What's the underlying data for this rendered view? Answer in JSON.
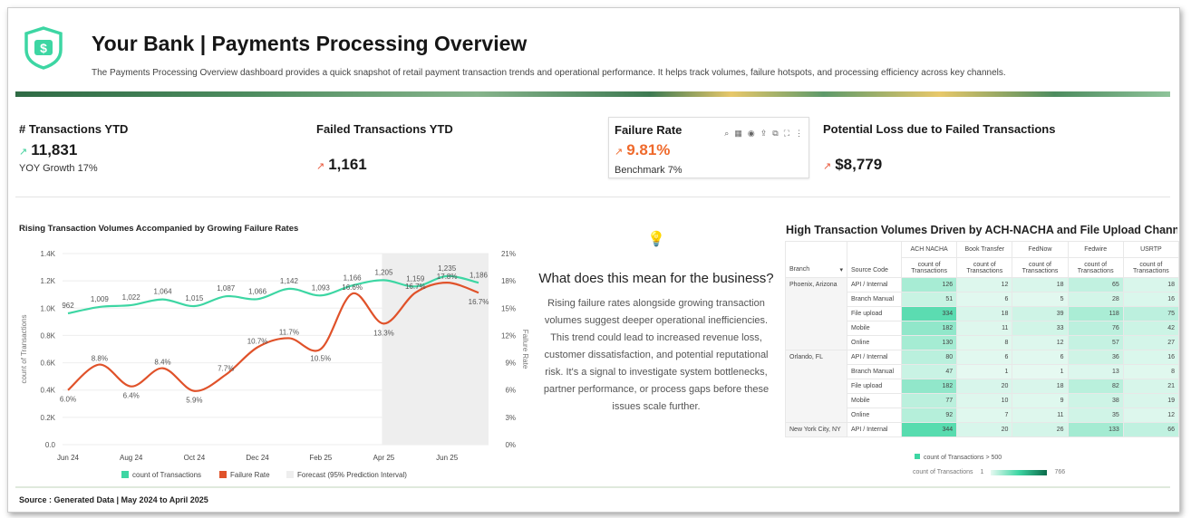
{
  "header": {
    "title": "Your Bank | Payments Processing Overview",
    "description": "The Payments Processing Overview dashboard provides a quick snapshot of retail payment transaction trends and operational performance. It helps track volumes, failure hotspots, and processing efficiency across key channels.",
    "logo_icon": "shield-dollar-icon"
  },
  "kpis": {
    "transactions": {
      "title": "# Transactions YTD",
      "value": "11,831",
      "sub": "YOY Growth 17%",
      "trend_icon": "trend-up-icon",
      "color": "#3ecf9a"
    },
    "failed": {
      "title": "Failed Transactions YTD",
      "value": "1,161",
      "trend_icon": "trend-up-icon",
      "color": "#e8573a"
    },
    "failure_rate": {
      "title": "Failure Rate",
      "value": "9.81%",
      "sub": "Benchmark 7%",
      "trend_icon": "trend-up-icon",
      "color": "#ef6a2c"
    },
    "loss": {
      "title": "Potential Loss due to Failed Transactions",
      "value": "$8,779",
      "trend_icon": "trend-up-icon",
      "color": "#e8573a"
    }
  },
  "chart_data": {
    "type": "line",
    "title": "Rising Transaction Volumes Accompanied by Growing Failure Rates",
    "categories": [
      "Jun 24",
      "Jul 24",
      "Aug 24",
      "Sep 24",
      "Oct 24",
      "Nov 24",
      "Dec 24",
      "Jan 25",
      "Feb 25",
      "Mar 25",
      "Apr 25",
      "May 25",
      "Jun 25",
      "Jul 25"
    ],
    "xticks": [
      "Jun 24",
      "Aug 24",
      "Oct 24",
      "Dec 24",
      "Feb 25",
      "Apr 25",
      "Jun 25"
    ],
    "ylabel": "count of Transactions",
    "y2label": "Failure Rate",
    "ylim": [
      0,
      1400
    ],
    "yticks": [
      "0.0",
      "0.2K",
      "0.4K",
      "0.6K",
      "0.8K",
      "1.0K",
      "1.2K",
      "1.4K"
    ],
    "y2lim": [
      0,
      21
    ],
    "y2ticks": [
      "0%",
      "3%",
      "6%",
      "9%",
      "12%",
      "15%",
      "18%",
      "21%"
    ],
    "series": [
      {
        "name": "count of Transactions",
        "color": "#3dd6a3",
        "values": [
          962,
          1009,
          1022,
          1064,
          1015,
          1087,
          1066,
          1142,
          1093,
          1166,
          1205,
          1159,
          1235,
          1186
        ],
        "labels": [
          "962",
          "1,009",
          "1,022",
          "1,064",
          "1,015",
          "1,087",
          "1,066",
          "1,142",
          "1,093",
          "1,166",
          "1,205",
          "1,159",
          "1,235",
          "1,186"
        ]
      },
      {
        "name": "Failure Rate",
        "color": "#e0522a",
        "values": [
          6.0,
          8.8,
          6.4,
          8.4,
          5.9,
          7.7,
          10.7,
          11.7,
          10.5,
          16.6,
          13.3,
          16.7,
          17.8,
          16.7
        ],
        "labels": [
          "6.0%",
          "8.8%",
          "6.4%",
          "8.4%",
          "5.9%",
          "7.7%",
          "10.7%",
          "11.7%",
          "10.5%",
          "16.6%",
          "13.3%",
          "16.7%",
          "17.8%",
          "16.7%"
        ]
      }
    ],
    "forecast": {
      "name": "Forecast (95% Prediction Interval)",
      "start": "Apr 25",
      "color": "#eeeeee"
    },
    "grid": true,
    "legend": "bottom"
  },
  "insight": {
    "icon": "lightbulb-icon",
    "heading": "What does this mean for the business?",
    "body": "Rising failure rates alongside growing transaction volumes suggest deeper operational inefficiencies. This trend could lead to increased revenue loss, customer dissatisfaction, and potential reputational risk. It's a signal to investigate system bottlenecks, partner performance, or process gaps before these issues scale further."
  },
  "table": {
    "title": "High Transaction Volumes Driven by ACH-NACHA and File Upload Channels",
    "branch_header": "Branch",
    "source_header": "Source Code",
    "columns": [
      "ACH NACHA",
      "Book Transfer",
      "FedNow",
      "Fedwire",
      "USRTP"
    ],
    "measure": "count of Transactions",
    "groups": [
      {
        "branch": "Phoenix, Arizona",
        "rows": [
          {
            "source": "API / Internal",
            "values": [
              126,
              12,
              18,
              65,
              18
            ]
          },
          {
            "source": "Branch Manual",
            "values": [
              51,
              6,
              5,
              28,
              16
            ]
          },
          {
            "source": "File upload",
            "values": [
              334,
              18,
              39,
              118,
              75
            ]
          },
          {
            "source": "Mobile",
            "values": [
              182,
              11,
              33,
              76,
              42
            ]
          },
          {
            "source": "Online",
            "values": [
              130,
              8,
              12,
              57,
              27
            ]
          }
        ]
      },
      {
        "branch": "Orlando, FL",
        "rows": [
          {
            "source": "API / Internal",
            "values": [
              80,
              6,
              6,
              36,
              16
            ]
          },
          {
            "source": "Branch Manual",
            "values": [
              47,
              1,
              1,
              13,
              8
            ]
          },
          {
            "source": "File upload",
            "values": [
              182,
              20,
              18,
              82,
              21
            ]
          },
          {
            "source": "Mobile",
            "values": [
              77,
              10,
              9,
              38,
              19
            ]
          },
          {
            "source": "Online",
            "values": [
              92,
              7,
              11,
              35,
              12
            ]
          }
        ]
      },
      {
        "branch": "New York City, NY",
        "rows": [
          {
            "source": "API / Internal",
            "values": [
              344,
              20,
              26,
              133,
              66
            ]
          }
        ]
      }
    ],
    "legend": {
      "threshold_label": "count of Transactions > 500",
      "scale_label": "count of Transactions",
      "min": "1",
      "max": "766",
      "color_min": "#e6f9f1",
      "color_max": "#0b6b4a",
      "threshold_color": "#3dd6a3"
    }
  },
  "footer": {
    "source": "Source : Generated Data | May 2024 to April 2025"
  }
}
